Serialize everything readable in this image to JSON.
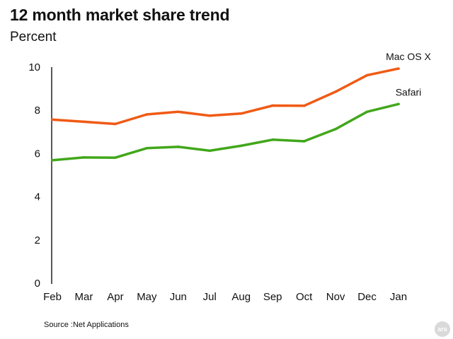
{
  "title": "12 month market share trend",
  "subtitle": "Percent",
  "source": "Source :Net Applications",
  "badge": "ars",
  "chart_data": {
    "type": "line",
    "title": "12 month market share trend",
    "ylabel": "Percent",
    "xlabel": "",
    "categories": [
      "Feb",
      "Mar",
      "Apr",
      "May",
      "Jun",
      "Jul",
      "Aug",
      "Sep",
      "Oct",
      "Nov",
      "Dec",
      "Jan"
    ],
    "ylim": [
      0,
      10
    ],
    "yticks": [
      0,
      2,
      4,
      6,
      8,
      10
    ],
    "grid": false,
    "legend": "inline labels at line ends",
    "series": [
      {
        "name": "Mac OS X",
        "color": "#f05a14",
        "values": [
          7.57,
          7.47,
          7.37,
          7.81,
          7.93,
          7.75,
          7.85,
          8.22,
          8.21,
          8.86,
          9.62,
          9.93
        ]
      },
      {
        "name": "Safari",
        "color": "#42a71b",
        "values": [
          5.69,
          5.82,
          5.81,
          6.25,
          6.31,
          6.13,
          6.36,
          6.64,
          6.57,
          7.13,
          7.93,
          8.29
        ]
      }
    ]
  }
}
